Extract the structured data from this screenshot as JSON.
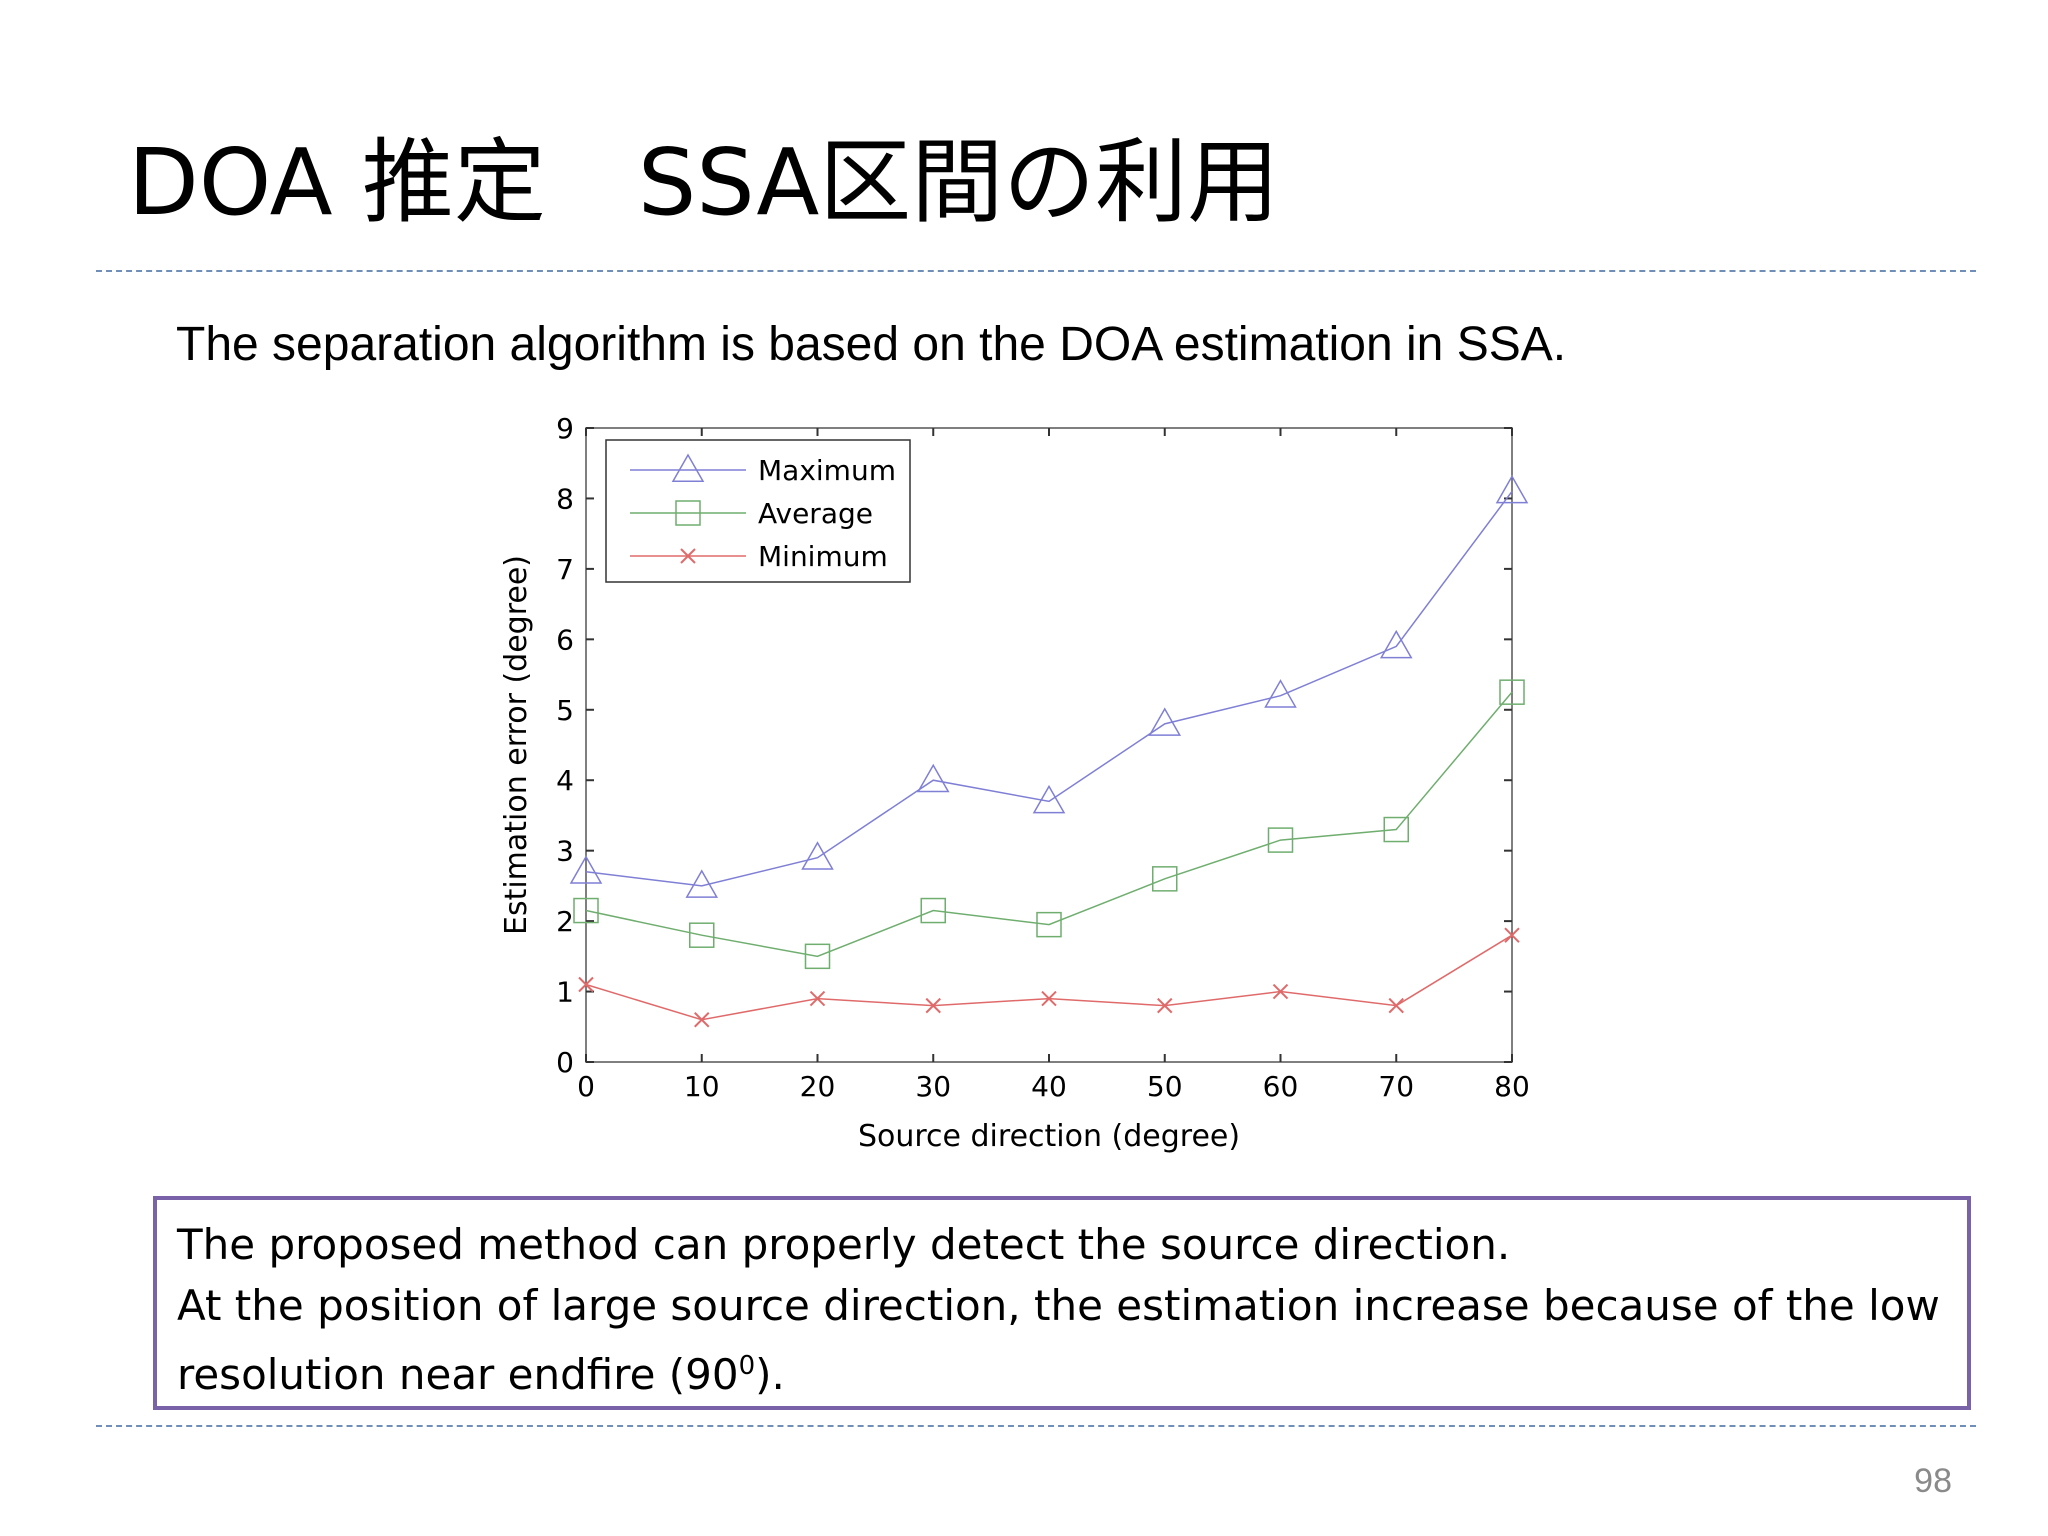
{
  "slide": {
    "title": "DOA 推定　SSA区間の利用",
    "subtitle": "The separation algorithm is based on the DOA estimation in SSA.",
    "note": {
      "line1": "The proposed method can properly detect the source direction.",
      "line2": "At the position of large source direction, the estimation increase because of the low",
      "line3_prefix": "resolution near endfire (90",
      "line3_sup": "0",
      "line3_suffix": ")."
    },
    "page_number": "98"
  },
  "chart_data": {
    "type": "line",
    "title": "",
    "xlabel": "Source direction (degree)",
    "ylabel": "Estimation error (degree)",
    "x": [
      0,
      10,
      20,
      30,
      40,
      50,
      60,
      70,
      80
    ],
    "xlim": [
      0,
      80
    ],
    "ylim": [
      0,
      9
    ],
    "xticks": [
      0,
      10,
      20,
      30,
      40,
      50,
      60,
      70,
      80
    ],
    "yticks": [
      0,
      1,
      2,
      3,
      4,
      5,
      6,
      7,
      8,
      9
    ],
    "grid": false,
    "legend_position": "top-left",
    "series": [
      {
        "name": "Maximum",
        "marker": "triangle",
        "color": "#7f7fd6",
        "values": [
          2.7,
          2.5,
          2.9,
          4.0,
          3.7,
          4.8,
          5.2,
          5.9,
          8.1
        ]
      },
      {
        "name": "Average",
        "marker": "square",
        "color": "#6fae6f",
        "values": [
          2.15,
          1.8,
          1.5,
          2.15,
          1.95,
          2.6,
          3.15,
          3.3,
          5.25
        ]
      },
      {
        "name": "Minimum",
        "marker": "x",
        "color": "#e06a6a",
        "values": [
          1.1,
          0.6,
          0.9,
          0.8,
          0.9,
          0.8,
          1.0,
          0.8,
          1.8
        ]
      }
    ]
  }
}
